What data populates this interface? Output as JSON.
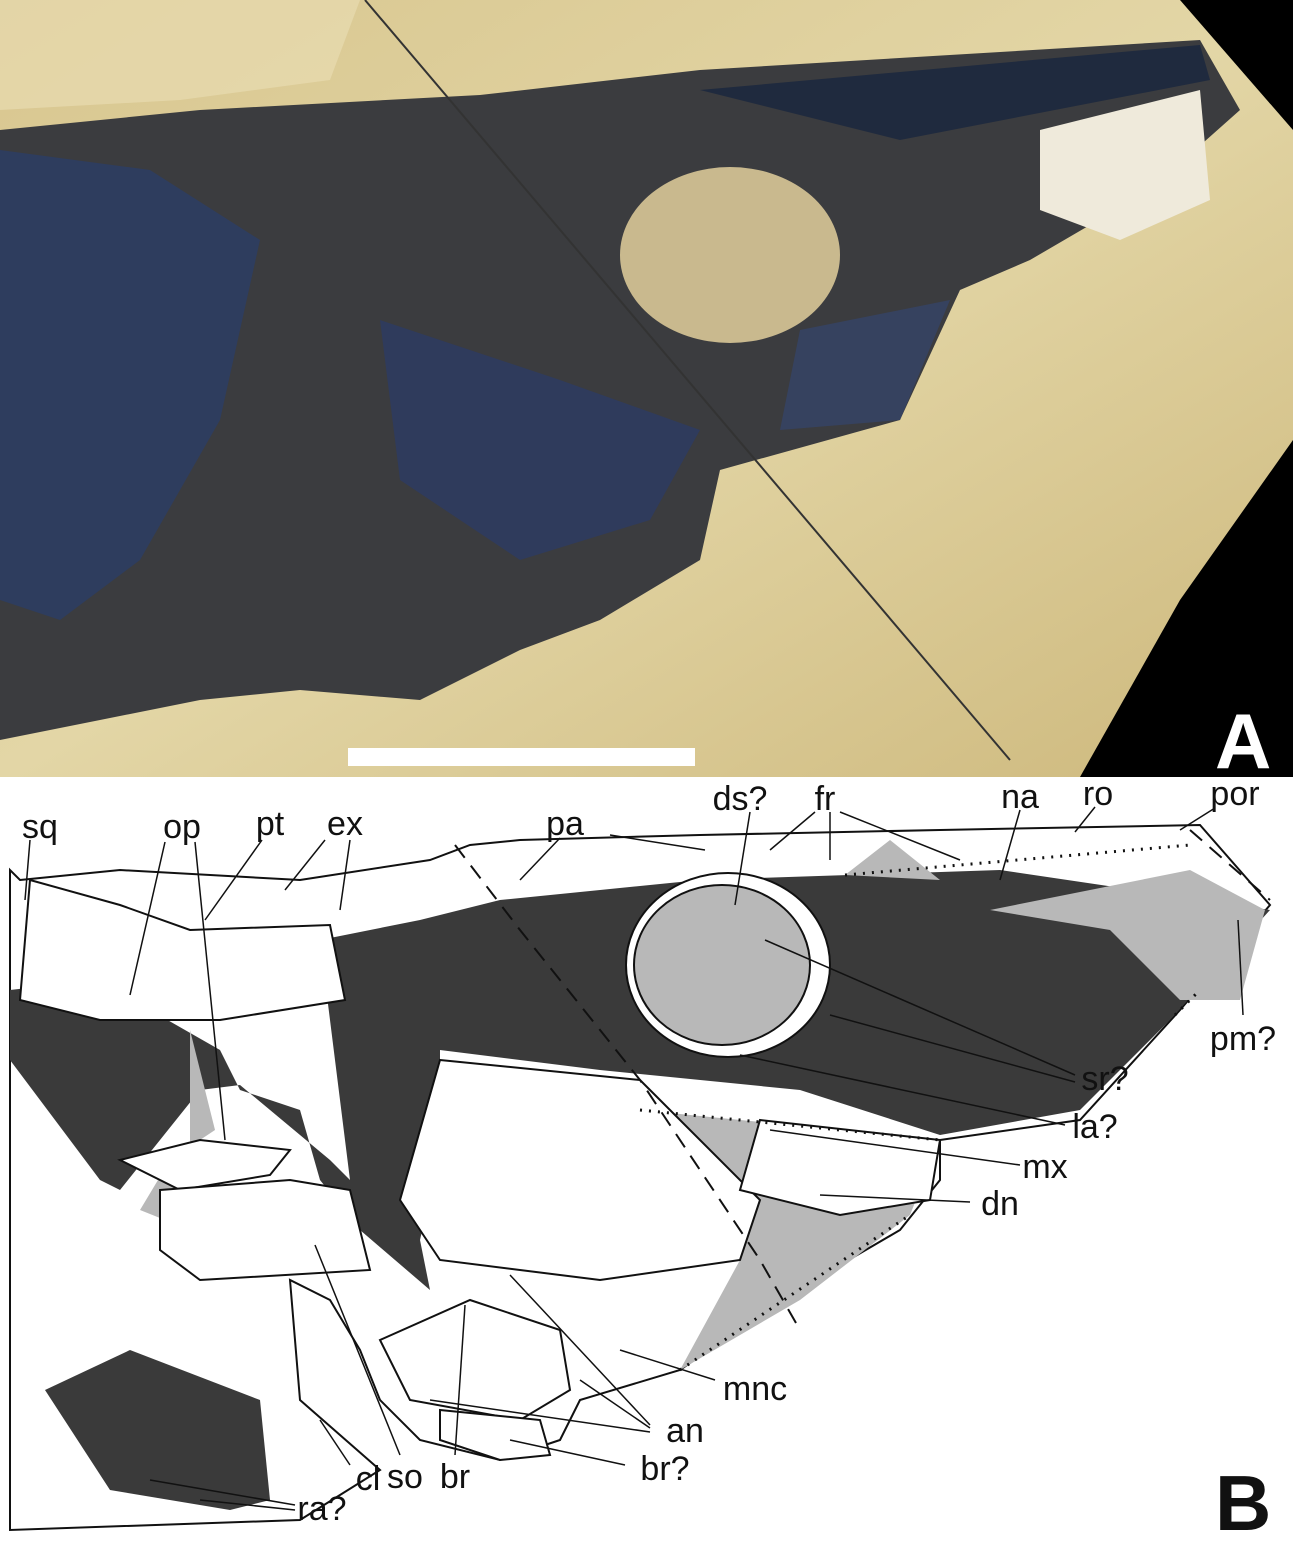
{
  "figure": {
    "panel_a": {
      "letter": "A"
    },
    "panel_b": {
      "letter": "B",
      "labels": [
        "sq",
        "op",
        "pt",
        "ex",
        "pa",
        "ds?",
        "fr",
        "na",
        "ro",
        "por",
        "pm?",
        "sr?",
        "la?",
        "mx",
        "dn",
        "mnc",
        "an",
        "br?",
        "so",
        "br",
        "cl",
        "ra?"
      ]
    }
  }
}
